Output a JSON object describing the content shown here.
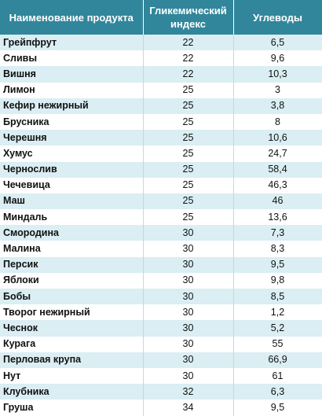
{
  "table": {
    "header": [
      "Наименование продукта",
      "Гликемический индекс",
      "Углеводы"
    ],
    "rows": [
      [
        "Грейпфрут",
        "22",
        "6,5"
      ],
      [
        "Сливы",
        "22",
        "9,6"
      ],
      [
        "Вишня",
        "22",
        "10,3"
      ],
      [
        "Лимон",
        "25",
        "3"
      ],
      [
        "Кефир нежирный",
        "25",
        "3,8"
      ],
      [
        "Брусника",
        "25",
        "8"
      ],
      [
        "Черешня",
        "25",
        "10,6"
      ],
      [
        "Хумус",
        "25",
        "24,7"
      ],
      [
        "Чернослив",
        "25",
        "58,4"
      ],
      [
        "Чечевица",
        "25",
        "46,3"
      ],
      [
        "Маш",
        "25",
        "46"
      ],
      [
        "Миндаль",
        "25",
        "13,6"
      ],
      [
        "Смородина",
        "30",
        "7,3"
      ],
      [
        "Малина",
        "30",
        "8,3"
      ],
      [
        "Персик",
        "30",
        "9,5"
      ],
      [
        "Яблоки",
        "30",
        "9,8"
      ],
      [
        "Бобы",
        "30",
        "8,5"
      ],
      [
        "Творог нежирный",
        "30",
        "1,2"
      ],
      [
        "Чеснок",
        "30",
        "5,2"
      ],
      [
        "Курага",
        "30",
        "55"
      ],
      [
        "Перловая крупа",
        "30",
        "66,9"
      ],
      [
        "Нут",
        "30",
        "61"
      ],
      [
        "Клубника",
        "32",
        "6,3"
      ],
      [
        "Груша",
        "34",
        "9,5"
      ]
    ]
  }
}
